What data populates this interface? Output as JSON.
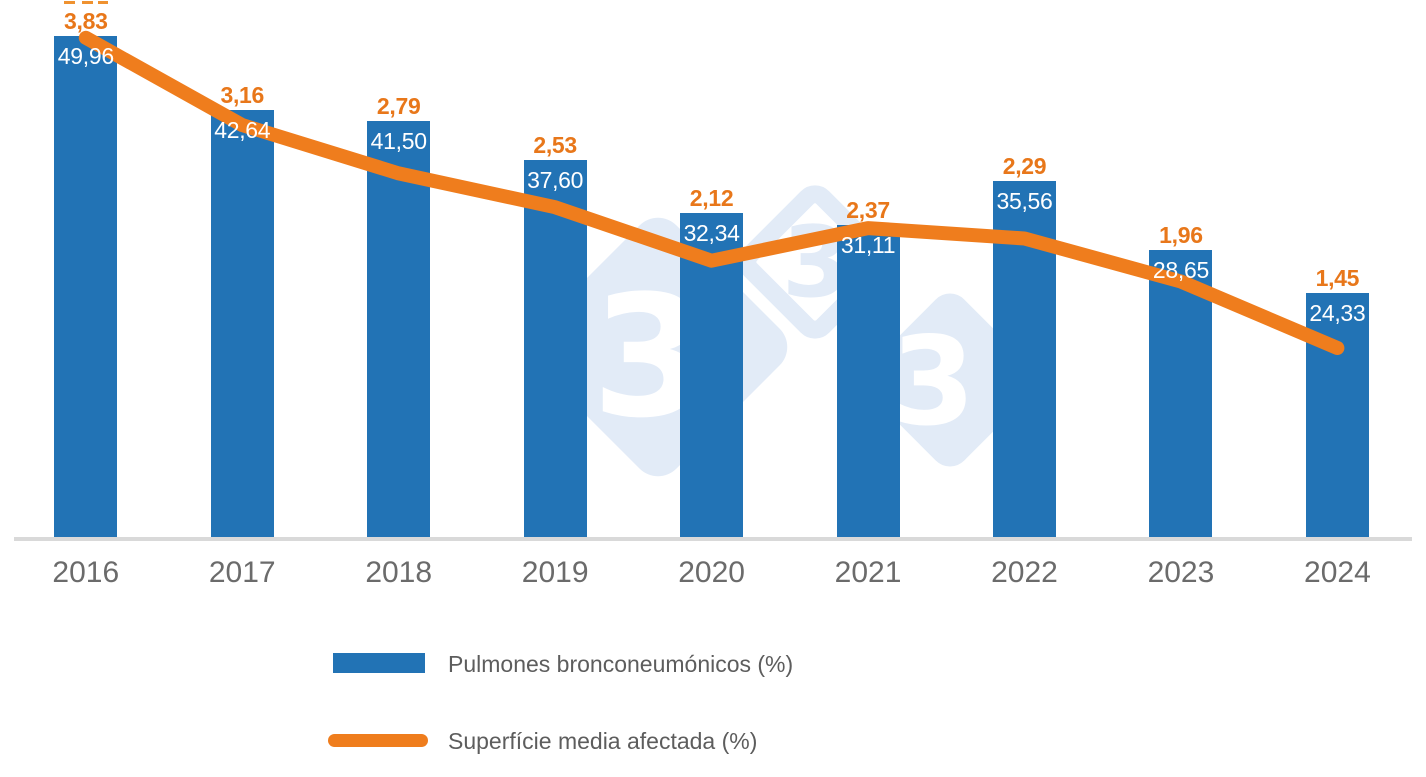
{
  "chart_data": {
    "type": "bar+line",
    "categories": [
      "2016",
      "2017",
      "2018",
      "2019",
      "2020",
      "2021",
      "2022",
      "2023",
      "2024"
    ],
    "series": [
      {
        "name": "Pulmones bronconeumónicos (%)",
        "chart_type": "bar",
        "color": "#2273b5",
        "label_color": "#ffffff",
        "values": [
          49.96,
          42.64,
          41.5,
          37.6,
          32.34,
          31.11,
          35.56,
          28.65,
          24.33
        ],
        "labels": [
          "49,96",
          "42,64",
          "41,50",
          "37,60",
          "32,34",
          "31,11",
          "35,56",
          "28,65",
          "24,33"
        ],
        "ylim": [
          0,
          53.6
        ]
      },
      {
        "name": "Superfície media afectada (%)",
        "chart_type": "line",
        "color": "#ef7d1d",
        "label_color": "#e8771a",
        "values": [
          3.83,
          3.16,
          2.79,
          2.53,
          2.12,
          2.37,
          2.29,
          1.96,
          1.45
        ],
        "labels": [
          "3,83",
          "3,16",
          "2,79",
          "2,53",
          "2,12",
          "2,37",
          "2,29",
          "1,96",
          "1,45"
        ],
        "ylim": [
          0,
          4.12
        ]
      }
    ],
    "title": "",
    "xlabel": "",
    "ylabel": "",
    "grid": false,
    "legend_position": "bottom-left"
  },
  "watermark": {
    "glyph": "3"
  },
  "colors": {
    "axis_line": "#d9d9d9",
    "tick_text": "#6b6b6b",
    "legend_text": "#5d5d5d",
    "watermark": "#e2ebf7",
    "artifact": "#ef9230"
  }
}
